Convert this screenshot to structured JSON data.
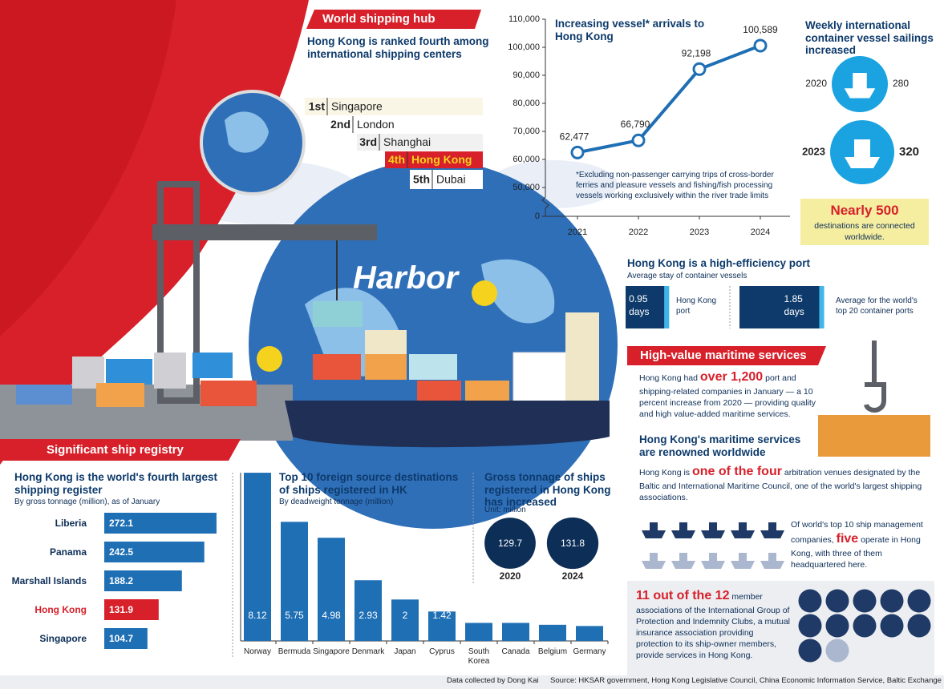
{
  "hub": {
    "title": "World shipping hub",
    "subtitle": "Hong Kong is ranked fourth among international shipping centers",
    "ranking": [
      {
        "rank": "1st",
        "city": "Singapore"
      },
      {
        "rank": "2nd",
        "city": "London"
      },
      {
        "rank": "3rd",
        "city": "Shanghai"
      },
      {
        "rank": "4th",
        "city": "Hong Kong"
      },
      {
        "rank": "5th",
        "city": "Dubai"
      }
    ],
    "illustration_label": "Harbor"
  },
  "registry_title": "Significant ship registry",
  "destinations": {
    "highlight": "Nearly 500",
    "text": "destinations are connected worldwide."
  },
  "services": {
    "title": "High-value maritime services",
    "companies": {
      "before": "Hong Kong had",
      "highlight": "over 1,200",
      "after": "port and shipping-related companies in January — a 10 percent increase from 2020 — providing quality and high value-added maritime services."
    },
    "renown_title": "Hong Kong's maritime services are renowned worldwide",
    "arbitration": {
      "before": "Hong Kong is",
      "highlight": "one of the four",
      "after": "arbitration venues designated by the Baltic and International Maritime Council, one of the world's largest shipping associations."
    },
    "management": {
      "before": "Of world's top 10 ship management companies,",
      "highlight": "five",
      "after": "operate in Hong Kong, with three of them headquartered here."
    },
    "clubs": {
      "highlight": "11 out of the 12",
      "after": "member associations of the International Group of Protection and Indemnity Clubs, a mutual insurance association providing protection to its ship-owner members, provide services in Hong Kong."
    }
  },
  "footer": {
    "credit": "Data collected by Dong Kai",
    "source": "Source: HKSAR government, Hong Kong Legislative Council, China Economic Information Service, Baltic Exchange"
  },
  "chart_data": [
    {
      "type": "line",
      "title": "Increasing vessel* arrivals to Hong Kong",
      "annotation": "*Excluding non-passenger carrying trips of cross-border ferries and pleasure vessels and fishing/fish processing vessels working exclusively within the river trade limits",
      "categories": [
        "2021",
        "2022",
        "2023",
        "2024"
      ],
      "values": [
        62477,
        66790,
        92198,
        100589
      ],
      "value_labels": [
        "62,477",
        "66,790",
        "92,198",
        "100,589"
      ],
      "color": "#1f6fb5",
      "ylim": [
        0,
        110000
      ],
      "yticks": [
        0,
        {
          "value": 50000,
          "label": "50,000"
        },
        {
          "value": 60000,
          "label": "60,000"
        },
        {
          "value": 70000,
          "label": "70,000"
        },
        {
          "value": 80000,
          "label": "80,000"
        },
        {
          "value": 90000,
          "label": "90,000"
        },
        {
          "value": 100000,
          "label": "100,000"
        },
        {
          "value": 110000,
          "label": "110,000"
        }
      ]
    },
    {
      "type": "bar",
      "orientation": "horizontal",
      "title": "Hong Kong is the world's fourth largest shipping register",
      "subtitle": "By gross tonnage (million), as of January",
      "categories": [
        "Liberia",
        "Panama",
        "Marshall Islands",
        "Hong Kong",
        "Singapore"
      ],
      "values": [
        272.1,
        242.5,
        188.2,
        131.9,
        104.7
      ],
      "colors": [
        "#1f6fb5",
        "#1f6fb5",
        "#1f6fb5",
        "#d7202a",
        "#1f6fb5"
      ],
      "label_colors": [
        "#0d2e57",
        "#0d2e57",
        "#0d2e57",
        "#d7202a",
        "#0d2e57"
      ],
      "xlim": [
        0,
        280
      ]
    },
    {
      "type": "bar",
      "orientation": "vertical",
      "title": "Top 10 foreign source destinations of ships registered in HK",
      "subtitle": "By deadweight tonnage (million)",
      "categories": [
        "Norway",
        "Bermuda",
        "Singapore",
        "Denmark",
        "Japan",
        "Cyprus",
        "South Korea",
        "Canada",
        "Belgium",
        "Germany"
      ],
      "values": [
        8.12,
        5.75,
        4.98,
        2.93,
        2,
        1.42,
        0.87,
        0.87,
        0.78,
        0.72
      ],
      "color": "#1f6fb5",
      "ylim": [
        0,
        8.2
      ]
    },
    {
      "type": "bubble",
      "title": "Gross tonnage of ships registered in Hong Kong has increased",
      "subtitle": "Unit: million",
      "categories": [
        "2020",
        "2024"
      ],
      "values": [
        129.7,
        131.8
      ],
      "color": "#0d2e57"
    },
    {
      "type": "pictogram",
      "title": "Weekly international container vessel sailings increased",
      "categories": [
        "2020",
        "2023"
      ],
      "values": [
        280,
        320
      ],
      "color": "#1aa3e0"
    },
    {
      "type": "bar",
      "orientation": "boxed",
      "title": "Hong Kong is a high-efficiency port",
      "subtitle": "Average stay of container vessels",
      "categories": [
        "Hong Kong port",
        "Average for the world's top 20 container ports"
      ],
      "values": [
        0.95,
        1.85
      ],
      "unit": "days",
      "color": "#0d3a6b",
      "accent": "#3fb6ea",
      "xlim": [
        0,
        2
      ]
    }
  ]
}
